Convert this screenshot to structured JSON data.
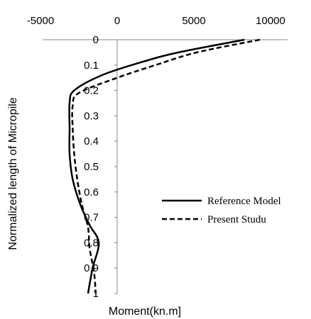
{
  "chart_data": {
    "type": "line",
    "xlabel": "Moment(kn.m]",
    "ylabel": "Normalized length of Micropile",
    "xlim": [
      -5000,
      10000
    ],
    "ylim": [
      0,
      1
    ],
    "y_inverted": true,
    "x_axis_position": "top",
    "x_ticks": [
      -5000,
      0,
      5000,
      10000
    ],
    "x_tick_labels": [
      "-5000",
      "0",
      "5000",
      "10000"
    ],
    "y_ticks": [
      0,
      0.1,
      0.2,
      0.3,
      0.4,
      0.5,
      0.6,
      0.7,
      0.8,
      0.9,
      1
    ],
    "y_tick_labels": [
      "0",
      "0.1",
      "0.2",
      "0.3",
      "0.4",
      "0.5",
      "0.6",
      "0.7",
      "0.8",
      "0.9",
      "1"
    ],
    "grid": false,
    "legend_position": "right",
    "series": [
      {
        "name": "Reference Model",
        "style": "solid",
        "color": "#000000",
        "points": [
          {
            "x": 8300,
            "y": 0.0
          },
          {
            "x": 4000,
            "y": 0.05
          },
          {
            "x": 1500,
            "y": 0.09
          },
          {
            "x": -1000,
            "y": 0.14
          },
          {
            "x": -2800,
            "y": 0.2
          },
          {
            "x": -3100,
            "y": 0.25
          },
          {
            "x": -3100,
            "y": 0.35
          },
          {
            "x": -3100,
            "y": 0.45
          },
          {
            "x": -2900,
            "y": 0.55
          },
          {
            "x": -2400,
            "y": 0.65
          },
          {
            "x": -1800,
            "y": 0.73
          },
          {
            "x": -1200,
            "y": 0.8
          },
          {
            "x": -1600,
            "y": 0.9
          },
          {
            "x": -1900,
            "y": 1.0
          }
        ]
      },
      {
        "name": "Present Studu",
        "style": "dashed",
        "color": "#000000",
        "points": [
          {
            "x": 9300,
            "y": 0.0
          },
          {
            "x": 5200,
            "y": 0.05
          },
          {
            "x": 2500,
            "y": 0.1
          },
          {
            "x": 0,
            "y": 0.15
          },
          {
            "x": -2500,
            "y": 0.21
          },
          {
            "x": -2900,
            "y": 0.26
          },
          {
            "x": -2900,
            "y": 0.35
          },
          {
            "x": -2800,
            "y": 0.45
          },
          {
            "x": -2600,
            "y": 0.55
          },
          {
            "x": -2300,
            "y": 0.65
          },
          {
            "x": -1900,
            "y": 0.74
          },
          {
            "x": -1800,
            "y": 0.82
          },
          {
            "x": -1500,
            "y": 0.92
          },
          {
            "x": -1400,
            "y": 1.0
          }
        ]
      }
    ]
  }
}
